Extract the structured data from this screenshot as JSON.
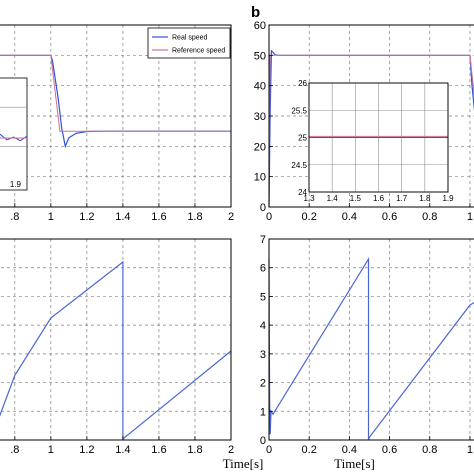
{
  "panel_letter": "b",
  "chart_data": [
    {
      "type": "line",
      "title": "",
      "xlabel": "",
      "ylabel": "",
      "xlim": [
        0.69,
        2
      ],
      "ylim": [
        0,
        60
      ],
      "xticks": [
        0.8,
        1,
        1.2,
        1.4,
        1.6,
        1.8,
        2
      ],
      "xtick_labels": [
        ".8",
        "1",
        "1.2",
        "1.4",
        "1.6",
        "1.8",
        "2"
      ],
      "grid": true,
      "legend": {
        "placement": "top-right",
        "entries": [
          "Real speed",
          "Reference speed"
        ]
      },
      "colors": {
        "real": "#3050d8",
        "reference": "#d07090"
      },
      "series": [
        {
          "name": "Real speed",
          "x": [
            0.69,
            1.0,
            1.01,
            1.04,
            1.06,
            1.08,
            1.1,
            1.14,
            1.2,
            1.3,
            2.0
          ],
          "y": [
            50,
            50,
            48,
            36,
            26,
            20,
            22.8,
            24.3,
            24.9,
            25,
            25
          ]
        },
        {
          "name": "Reference speed",
          "x": [
            0.69,
            1.0,
            1.05,
            2.0
          ],
          "y": [
            50,
            50,
            25,
            25
          ]
        }
      ],
      "inset": {
        "xlim": [
          1.6,
          1.9
        ],
        "visible_xtick_labels": [
          "1.9"
        ],
        "series": [
          {
            "name": "Real speed",
            "x": [
              1.6,
              1.63,
              1.66,
              1.69,
              1.72,
              1.75,
              1.78,
              1.81,
              1.84,
              1.87,
              1.9
            ],
            "y": [
              25.05,
              24.9,
              25.15,
              24.85,
              25.1,
              24.95,
              25.2,
              24.9,
              25.05,
              24.85,
              25.1
            ]
          },
          {
            "name": "Reference speed",
            "x": [
              1.6,
              1.9
            ],
            "y": [
              25,
              25
            ]
          }
        ]
      }
    },
    {
      "type": "line",
      "title": "",
      "xlabel": "",
      "ylabel": "",
      "xlim": [
        0,
        1.05
      ],
      "ylim": [
        0,
        60
      ],
      "xticks": [
        0,
        0.2,
        0.4,
        0.6,
        0.8,
        1
      ],
      "xtick_labels": [
        "0",
        "0.2",
        "0.4",
        "0.6",
        "0.8",
        "1"
      ],
      "yticks": [
        0,
        10,
        20,
        30,
        40,
        50,
        60
      ],
      "ytick_labels": [
        "0",
        "10",
        "20",
        "30",
        "40",
        "50",
        "60"
      ],
      "grid": true,
      "series": [
        {
          "name": "Real speed",
          "x": [
            0,
            0.005,
            0.012,
            0.02,
            0.03,
            0.05,
            1.0,
            1.01,
            1.03,
            1.05
          ],
          "y": [
            0,
            28,
            51.5,
            51,
            50.2,
            50,
            50,
            40,
            27,
            25
          ]
        },
        {
          "name": "Reference speed",
          "x": [
            0,
            0.005,
            1.0,
            1.04,
            1.05
          ],
          "y": [
            0,
            50,
            50,
            25,
            25
          ]
        }
      ],
      "inset": {
        "xlim": [
          1.3,
          1.9
        ],
        "ylim": [
          24,
          26
        ],
        "xticks": [
          1.3,
          1.4,
          1.5,
          1.6,
          1.7,
          1.8,
          1.9
        ],
        "xtick_labels": [
          "1.3",
          "1.4",
          "1.5",
          "1.6",
          "1.7",
          "1.8",
          "1.9"
        ],
        "yticks": [
          24,
          24.5,
          25,
          25.5,
          26
        ],
        "ytick_labels": [
          "24",
          "24.5",
          "25",
          "25.5",
          "26"
        ],
        "series": [
          {
            "name": "Real speed",
            "x": [
              1.3,
              1.9
            ],
            "y": [
              25,
              25
            ]
          },
          {
            "name": "Reference speed",
            "x": [
              1.3,
              1.9
            ],
            "y": [
              25.02,
              25.02
            ]
          }
        ]
      }
    },
    {
      "type": "line",
      "title": "",
      "xlabel": "Time[s]",
      "ylabel": "",
      "xlim": [
        0.69,
        2
      ],
      "ylim": [
        0,
        7
      ],
      "xticks": [
        0.8,
        1,
        1.2,
        1.4,
        1.6,
        1.8,
        2
      ],
      "xtick_labels": [
        ".8",
        "1",
        "1.2",
        "1.4",
        "1.6",
        "1.8",
        "2"
      ],
      "grid": true,
      "series": [
        {
          "name": "",
          "x": [
            0.69,
            0.8,
            1.0,
            1.4,
            1.4,
            1.402,
            2.0
          ],
          "y": [
            0.4,
            2.25,
            4.25,
            6.2,
            0,
            0.05,
            3.1
          ]
        }
      ]
    },
    {
      "type": "line",
      "title": "",
      "xlabel": "Time[s]",
      "ylabel": "",
      "xlim": [
        0,
        1.05
      ],
      "ylim": [
        0,
        7
      ],
      "xticks": [
        0,
        0.2,
        0.4,
        0.6,
        0.8,
        1
      ],
      "xtick_labels": [
        "0",
        "0.2",
        "0.4",
        "0.6",
        "0.8",
        "1"
      ],
      "yticks": [
        0,
        1,
        2,
        3,
        4,
        5,
        6,
        7
      ],
      "ytick_labels": [
        "0",
        "1",
        "2",
        "3",
        "4",
        "5",
        "6",
        "7"
      ],
      "grid": true,
      "series": [
        {
          "name": "",
          "x": [
            0,
            0.003,
            0.006,
            0.01,
            0.02,
            0.495,
            0.495,
            0.5,
            1.0,
            1.05
          ],
          "y": [
            6.3,
            1.5,
            0.2,
            1.0,
            0.9,
            6.3,
            0,
            0.1,
            4.7,
            4.9
          ]
        }
      ]
    }
  ]
}
